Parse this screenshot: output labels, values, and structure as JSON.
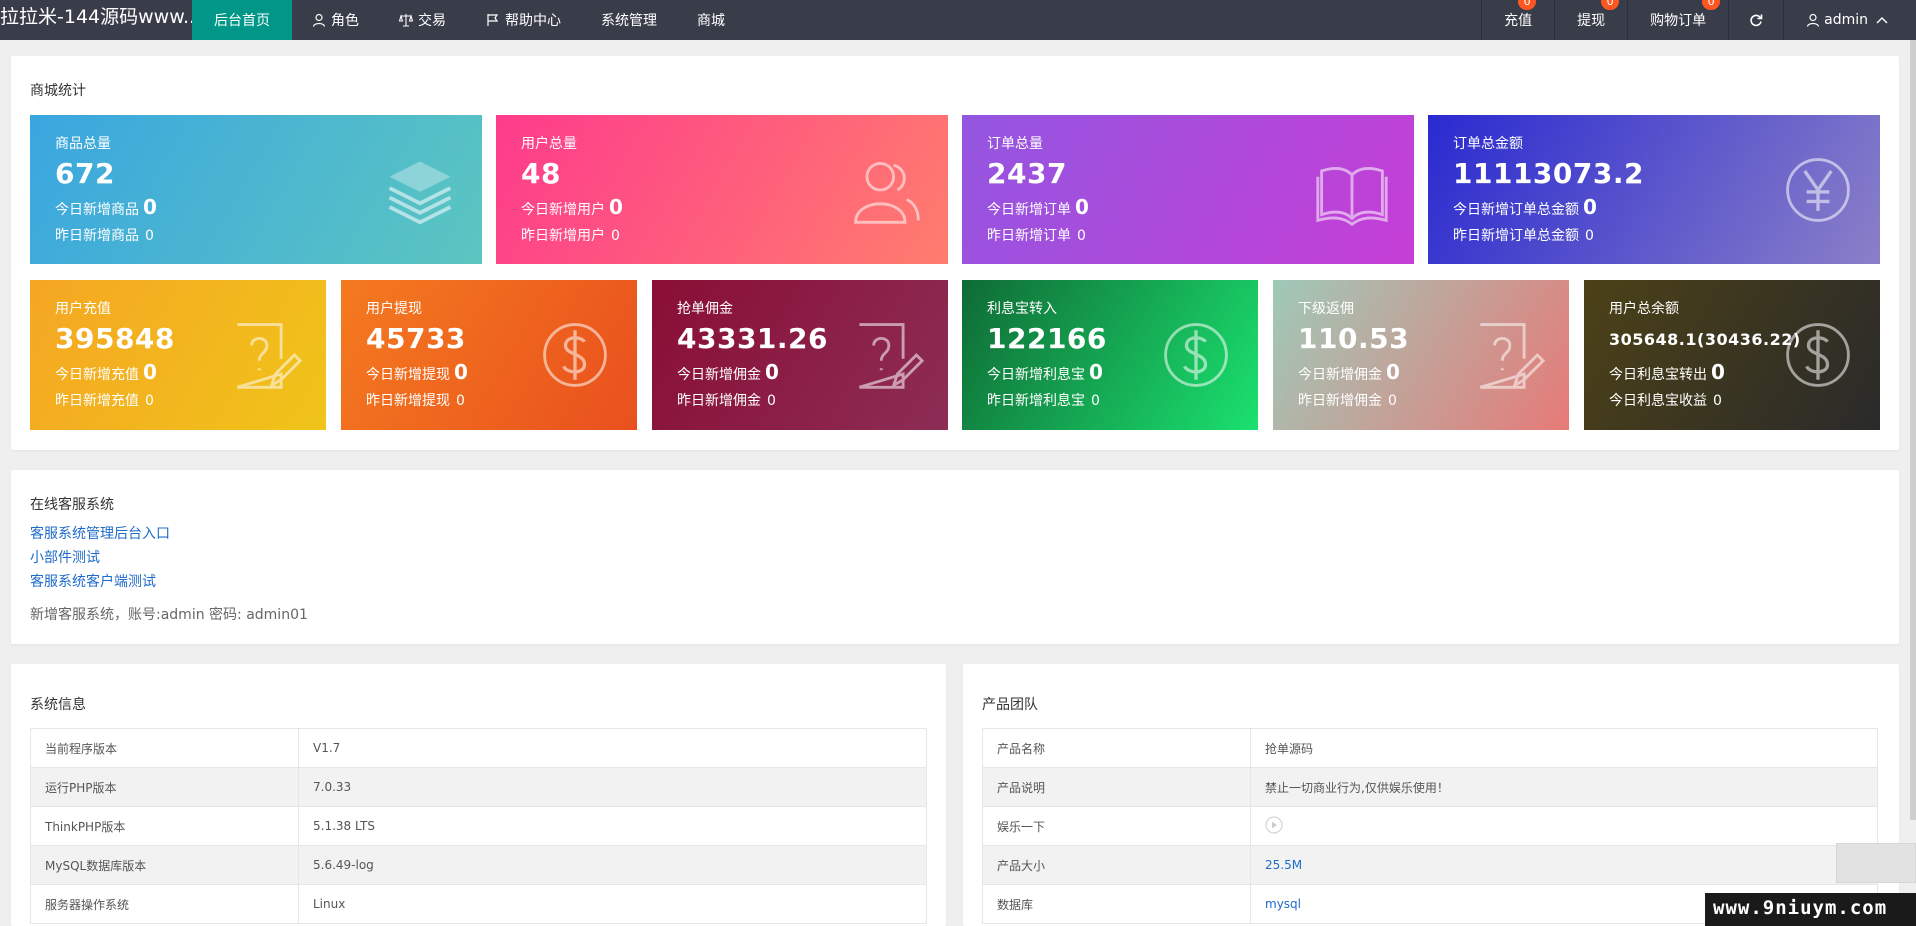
{
  "header": {
    "logo": "拉拉米-144源码www....",
    "nav": [
      {
        "label": "后台首页",
        "icon": "none",
        "active": true
      },
      {
        "label": "角色",
        "icon": "user-icon"
      },
      {
        "label": "交易",
        "icon": "scale-icon"
      },
      {
        "label": "帮助中心",
        "icon": "flag-icon"
      },
      {
        "label": "系统管理",
        "icon": "none"
      },
      {
        "label": "商城",
        "icon": "none"
      }
    ],
    "right": [
      {
        "label": "充值",
        "badge": "0"
      },
      {
        "label": "提现",
        "badge": "0"
      },
      {
        "label": "购物订单",
        "badge": "0"
      }
    ],
    "refresh_icon": "refresh-icon",
    "user": "admin"
  },
  "stats": {
    "title": "商城统计",
    "row1": [
      {
        "label": "商品总量",
        "value": "672",
        "today_label": "今日新增商品",
        "today": "0",
        "yesterday_label": "昨日新增商品",
        "yesterday": "0",
        "icon": "layers-icon",
        "gradient": [
          "#3aa6e0",
          "#5cc6c0"
        ]
      },
      {
        "label": "用户总量",
        "value": "48",
        "today_label": "今日新增用户",
        "today": "0",
        "yesterday_label": "昨日新增用户",
        "yesterday": "0",
        "icon": "users-icon",
        "gradient": [
          "#fe3b8c",
          "#ff7d6e"
        ]
      },
      {
        "label": "订单总量",
        "value": "2437",
        "today_label": "今日新增订单",
        "today": "0",
        "yesterday_label": "昨日新增订单",
        "yesterday": "0",
        "icon": "book-icon",
        "gradient": [
          "#9356e0",
          "#c63ed6"
        ]
      },
      {
        "label": "订单总金额",
        "value": "11113073.2",
        "today_label": "今日新增订单总金额",
        "today": "0",
        "yesterday_label": "昨日新增订单总金额",
        "yesterday": "0",
        "icon": "yen-icon",
        "gradient": [
          "#2a2ad0",
          "#8a80c8"
        ]
      }
    ],
    "row2": [
      {
        "label": "用户充值",
        "value": "395848",
        "today_label": "今日新增充值",
        "today": "0",
        "yesterday_label": "昨日新增充值",
        "yesterday": "0",
        "icon": "edit-doc-icon",
        "gradient": [
          "#f5a623",
          "#f0c419"
        ]
      },
      {
        "label": "用户提现",
        "value": "45733",
        "today_label": "今日新增提现",
        "today": "0",
        "yesterday_label": "昨日新增提现",
        "yesterday": "0",
        "icon": "dollar-icon",
        "gradient": [
          "#f47a1f",
          "#e9501e"
        ]
      },
      {
        "label": "抢单佣金",
        "value": "43331.26",
        "today_label": "今日新增佣金",
        "today": "0",
        "yesterday_label": "昨日新增佣金",
        "yesterday": "0",
        "icon": "edit-doc-icon",
        "gradient": [
          "#8a0e35",
          "#8c2d55"
        ]
      },
      {
        "label": "利息宝转入",
        "value": "122166",
        "today_label": "今日新增利息宝",
        "today": "0",
        "yesterday_label": "昨日新增利息宝",
        "yesterday": "0",
        "icon": "dollar-icon",
        "gradient": [
          "#0f6b35",
          "#1be16f"
        ]
      },
      {
        "label": "下级返佣",
        "value": "110.53",
        "today_label": "今日新增佣金",
        "today": "0",
        "yesterday_label": "昨日新增佣金",
        "yesterday": "0",
        "icon": "edit-doc-icon",
        "gradient": [
          "#9fc9b8",
          "#e77a78"
        ]
      },
      {
        "label": "用户总余额",
        "value": "305648.1(30436.22)",
        "today_label": "今日利息宝转出",
        "today": "0",
        "yesterday_label": "今日利息宝收益",
        "yesterday": "0",
        "icon": "dollar-icon",
        "gradient": [
          "#4c4117",
          "#2a2a2a"
        ]
      }
    ]
  },
  "service": {
    "title": "在线客服系统",
    "links": [
      "客服系统管理后台入口",
      "小部件测试",
      "客服系统客户端测试"
    ],
    "note": "新增客服系统，账号:admin 密码: admin01"
  },
  "sysinfo": {
    "title": "系统信息",
    "rows": [
      [
        "当前程序版本",
        "V1.7"
      ],
      [
        "运行PHP版本",
        "7.0.33"
      ],
      [
        "ThinkPHP版本",
        "5.1.38 LTS"
      ],
      [
        "MySQL数据库版本",
        "5.6.49-log"
      ],
      [
        "服务器操作系统",
        "Linux"
      ]
    ]
  },
  "team": {
    "title": "产品团队",
    "rows": [
      [
        "产品名称",
        "抢单源码"
      ],
      [
        "产品说明",
        "禁止一切商业行为,仅供娱乐使用！"
      ],
      [
        "娱乐一下",
        ""
      ],
      [
        "产品大小",
        "25.5M"
      ],
      [
        "数据库",
        "mysql"
      ]
    ]
  },
  "watermark": "www.9niuym.com"
}
